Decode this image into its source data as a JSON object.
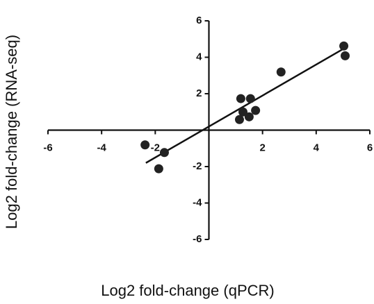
{
  "chart_data": {
    "type": "scatter",
    "x_label": "Log2 fold-change (qPCR)",
    "y_label": "Log2 fold-change (RNA-seq)",
    "x": [
      -2.38,
      -1.66,
      -1.87,
      1.19,
      1.55,
      1.27,
      1.74,
      1.14,
      1.5,
      2.69,
      5.03,
      5.08
    ],
    "values": [
      -0.81,
      -1.23,
      -2.12,
      1.73,
      1.73,
      1.0,
      1.08,
      0.58,
      0.73,
      3.19,
      4.62,
      4.08
    ],
    "color": "#222222",
    "fit_line": {
      "x": [
        -2.35,
        5.0
      ],
      "y": [
        -1.8,
        4.45
      ]
    },
    "xlim": [
      -6,
      6
    ],
    "ylim": [
      -6,
      6
    ],
    "xticks": [
      -6,
      -4,
      -2,
      2,
      4,
      6
    ],
    "yticks": [
      -6,
      -4,
      -2,
      2,
      4,
      6
    ]
  }
}
